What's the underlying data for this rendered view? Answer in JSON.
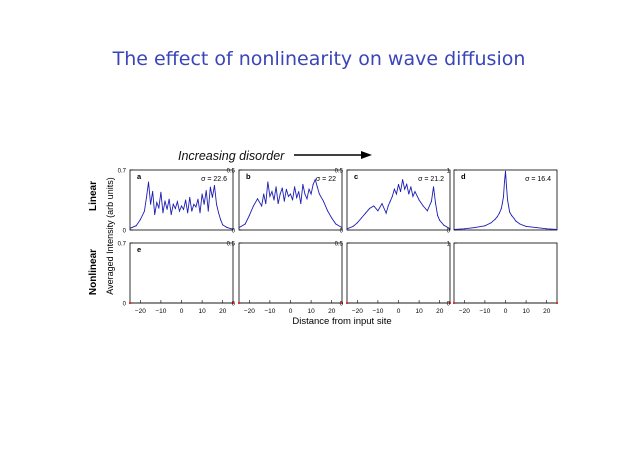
{
  "slide": {
    "title": "The effect of nonlinearity on wave diffusion"
  },
  "annotation": {
    "text": "Increasing disorder"
  },
  "row_labels": {
    "linear": "Linear",
    "nonlinear": "Nonlinear"
  },
  "colors": {
    "title": "#3a45b9",
    "trace": "#1d1db5",
    "nonlinear_dot": "#d62020"
  },
  "chart_data": [
    {
      "type": "line",
      "label": "a",
      "row": "linear",
      "sigma_text": "σ = 22.6",
      "ylim": [
        0,
        0.7
      ],
      "yticks": [
        {
          "value": 0,
          "label": "0"
        },
        {
          "value": 0.7,
          "label": "0.7"
        }
      ],
      "xlim": [
        -25,
        25
      ],
      "x": [
        -25,
        -22,
        -20,
        -18,
        -17,
        -16,
        -15,
        -14,
        -13,
        -12,
        -11,
        -10,
        -9,
        -8,
        -7,
        -6,
        -5,
        -4,
        -3,
        -2,
        -1,
        0,
        1,
        2,
        3,
        4,
        5,
        6,
        7,
        8,
        9,
        10,
        11,
        12,
        13,
        14,
        15,
        16,
        17,
        18,
        19,
        20,
        22,
        25
      ],
      "y": [
        0.02,
        0.05,
        0.12,
        0.22,
        0.38,
        0.56,
        0.3,
        0.45,
        0.18,
        0.32,
        0.26,
        0.44,
        0.2,
        0.34,
        0.24,
        0.36,
        0.18,
        0.3,
        0.25,
        0.33,
        0.22,
        0.28,
        0.24,
        0.35,
        0.2,
        0.38,
        0.22,
        0.3,
        0.27,
        0.36,
        0.2,
        0.42,
        0.3,
        0.46,
        0.22,
        0.5,
        0.38,
        0.52,
        0.3,
        0.2,
        0.12,
        0.06,
        0.03,
        0.01
      ]
    },
    {
      "type": "line",
      "label": "b",
      "row": "linear",
      "sigma_text": "σ = 22",
      "ylim": [
        0,
        0.5
      ],
      "yticks": [
        {
          "value": 0,
          "label": "0"
        },
        {
          "value": 0.5,
          "label": "0.5"
        }
      ],
      "xlim": [
        -25,
        25
      ],
      "x": [
        -25,
        -22,
        -20,
        -18,
        -16,
        -14,
        -13,
        -12,
        -11,
        -10,
        -9,
        -8,
        -7,
        -6,
        -5,
        -4,
        -3,
        -2,
        -1,
        0,
        1,
        2,
        3,
        4,
        5,
        6,
        7,
        8,
        9,
        10,
        11,
        12,
        13,
        14,
        16,
        18,
        20,
        22,
        25
      ],
      "y": [
        0.02,
        0.05,
        0.12,
        0.2,
        0.26,
        0.2,
        0.3,
        0.22,
        0.4,
        0.28,
        0.32,
        0.25,
        0.36,
        0.22,
        0.3,
        0.35,
        0.24,
        0.34,
        0.28,
        0.3,
        0.25,
        0.36,
        0.27,
        0.32,
        0.22,
        0.38,
        0.3,
        0.26,
        0.34,
        0.3,
        0.38,
        0.42,
        0.36,
        0.3,
        0.24,
        0.16,
        0.1,
        0.05,
        0.02
      ]
    },
    {
      "type": "line",
      "label": "c",
      "row": "linear",
      "sigma_text": "σ = 21.2",
      "ylim": [
        0,
        0.5
      ],
      "yticks": [
        {
          "value": 0,
          "label": "0"
        },
        {
          "value": 0.5,
          "label": "0.5"
        }
      ],
      "xlim": [
        -25,
        25
      ],
      "x": [
        -25,
        -22,
        -20,
        -18,
        -16,
        -14,
        -12,
        -10,
        -8,
        -6,
        -5,
        -4,
        -3,
        -2,
        -1,
        0,
        1,
        2,
        3,
        4,
        5,
        6,
        7,
        8,
        10,
        12,
        14,
        16,
        17,
        18,
        19,
        20,
        22,
        25
      ],
      "y": [
        0.01,
        0.03,
        0.06,
        0.1,
        0.14,
        0.18,
        0.2,
        0.16,
        0.22,
        0.14,
        0.2,
        0.24,
        0.28,
        0.34,
        0.3,
        0.38,
        0.32,
        0.42,
        0.34,
        0.38,
        0.3,
        0.36,
        0.28,
        0.32,
        0.25,
        0.2,
        0.16,
        0.24,
        0.36,
        0.22,
        0.12,
        0.08,
        0.04,
        0.01
      ]
    },
    {
      "type": "line",
      "label": "d",
      "row": "linear",
      "sigma_text": "σ = 16.4",
      "ylim": [
        0,
        1
      ],
      "yticks": [
        {
          "value": 0,
          "label": "0"
        },
        {
          "value": 1,
          "label": "1"
        }
      ],
      "xlim": [
        -25,
        25
      ],
      "x": [
        -25,
        -20,
        -15,
        -10,
        -7,
        -5,
        -4,
        -3,
        -2,
        -1.5,
        -1,
        -0.5,
        0,
        0.5,
        1,
        1.5,
        2,
        3,
        4,
        5,
        7,
        10,
        15,
        20,
        25
      ],
      "y": [
        0.01,
        0.02,
        0.04,
        0.07,
        0.12,
        0.18,
        0.22,
        0.28,
        0.36,
        0.45,
        0.55,
        0.8,
        0.98,
        0.72,
        0.5,
        0.4,
        0.3,
        0.24,
        0.2,
        0.15,
        0.1,
        0.06,
        0.04,
        0.02,
        0.01
      ]
    },
    {
      "type": "line",
      "label": "e",
      "row": "nonlinear",
      "ylim": [
        0,
        0.7
      ],
      "yticks": [
        {
          "value": 0,
          "label": "0"
        },
        {
          "value": 0.7,
          "label": "0.7"
        }
      ],
      "xlim": [
        -25,
        25
      ],
      "xticks": [
        {
          "value": -20,
          "label": "−20"
        },
        {
          "value": -10,
          "label": "−10"
        },
        {
          "value": 0,
          "label": "0"
        },
        {
          "value": 10,
          "label": "10"
        },
        {
          "value": 20,
          "label": "20"
        }
      ],
      "x": [
        -25,
        25
      ],
      "y": [
        0,
        0
      ]
    },
    {
      "type": "line",
      "label": "",
      "row": "nonlinear",
      "ylim": [
        0,
        0.5
      ],
      "yticks": [
        {
          "value": 0,
          "label": "0"
        },
        {
          "value": 0.5,
          "label": "0.5"
        }
      ],
      "xlim": [
        -25,
        25
      ],
      "xticks": [
        {
          "value": -20,
          "label": "−20"
        },
        {
          "value": -10,
          "label": "−10"
        },
        {
          "value": 0,
          "label": "0"
        },
        {
          "value": 10,
          "label": "10"
        },
        {
          "value": 20,
          "label": "20"
        }
      ],
      "x": [
        -25,
        25
      ],
      "y": [
        0,
        0
      ]
    },
    {
      "type": "line",
      "label": "",
      "row": "nonlinear",
      "ylim": [
        0,
        0.5
      ],
      "yticks": [
        {
          "value": 0,
          "label": "0"
        },
        {
          "value": 0.5,
          "label": "0.5"
        }
      ],
      "xlim": [
        -25,
        25
      ],
      "xticks": [
        {
          "value": -20,
          "label": "−20"
        },
        {
          "value": -10,
          "label": "−10"
        },
        {
          "value": 0,
          "label": "0"
        },
        {
          "value": 10,
          "label": "10"
        },
        {
          "value": 20,
          "label": "20"
        }
      ],
      "x": [
        -25,
        25
      ],
      "y": [
        0,
        0
      ]
    },
    {
      "type": "line",
      "label": "",
      "row": "nonlinear",
      "ylim": [
        0,
        1
      ],
      "yticks": [
        {
          "value": 0,
          "label": "0"
        },
        {
          "value": 1,
          "label": "1"
        }
      ],
      "xlim": [
        -25,
        25
      ],
      "xticks": [
        {
          "value": -20,
          "label": "−20"
        },
        {
          "value": -10,
          "label": "−10"
        },
        {
          "value": 0,
          "label": "0"
        },
        {
          "value": 10,
          "label": "10"
        },
        {
          "value": 20,
          "label": "20"
        }
      ],
      "x": [
        -25,
        25
      ],
      "y": [
        0,
        0
      ]
    }
  ],
  "axes": {
    "xlabel": "Distance from input site",
    "ylabel": "Averaged Intensity (arb units)"
  }
}
